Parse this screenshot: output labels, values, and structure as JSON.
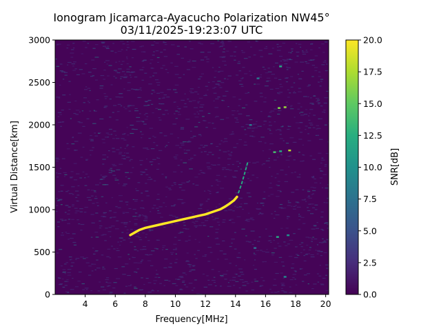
{
  "chart_data": {
    "type": "heatmap",
    "title_line1": "Ionogram Jicamarca-Ayacucho Polarization NW45°",
    "title_line2": "03/11/2025-19:23:07 UTC",
    "xlabel": "Frequency[MHz]",
    "ylabel": "Virtual Distance[km]",
    "xlim": [
      2,
      20.2
    ],
    "ylim": [
      0,
      3000
    ],
    "x_ticks": [
      4,
      6,
      8,
      10,
      12,
      14,
      16,
      18,
      20
    ],
    "y_ticks": [
      0,
      500,
      1000,
      1500,
      2000,
      2500,
      3000
    ],
    "colorbar": {
      "label": "SNR[dB]",
      "colormap": "viridis",
      "range": [
        0,
        20
      ],
      "ticks": [
        "0.0",
        "2.5",
        "5.0",
        "7.5",
        "10.0",
        "12.5",
        "15.0",
        "17.5",
        "20.0"
      ]
    },
    "background_snr_db": 0.5,
    "traces": [
      {
        "snr_db": 20,
        "points": [
          [
            7.0,
            700
          ],
          [
            7.3,
            730
          ],
          [
            7.6,
            760
          ],
          [
            8.0,
            785
          ],
          [
            8.5,
            805
          ],
          [
            9.0,
            825
          ],
          [
            9.5,
            845
          ],
          [
            10.0,
            865
          ],
          [
            10.5,
            885
          ],
          [
            11.0,
            905
          ],
          [
            11.5,
            925
          ],
          [
            12.0,
            945
          ],
          [
            12.5,
            975
          ],
          [
            13.0,
            1005
          ],
          [
            13.3,
            1035
          ],
          [
            13.6,
            1070
          ],
          [
            13.9,
            1110
          ],
          [
            14.1,
            1150
          ]
        ]
      },
      {
        "snr_db": 12,
        "points": [
          [
            14.2,
            1200
          ],
          [
            14.4,
            1300
          ],
          [
            14.6,
            1420
          ],
          [
            14.8,
            1550
          ]
        ]
      }
    ],
    "scatter_echoes": [
      {
        "x": 16.6,
        "y": 1680,
        "snr_db": 14
      },
      {
        "x": 17.0,
        "y": 1690,
        "snr_db": 12
      },
      {
        "x": 17.6,
        "y": 1700,
        "snr_db": 18
      },
      {
        "x": 16.9,
        "y": 2200,
        "snr_db": 16
      },
      {
        "x": 17.3,
        "y": 2210,
        "snr_db": 17
      },
      {
        "x": 17.0,
        "y": 2690,
        "snr_db": 12
      },
      {
        "x": 16.8,
        "y": 680,
        "snr_db": 12
      },
      {
        "x": 17.5,
        "y": 700,
        "snr_db": 10
      },
      {
        "x": 17.3,
        "y": 210,
        "snr_db": 9
      },
      {
        "x": 15.0,
        "y": 2000,
        "snr_db": 8
      },
      {
        "x": 15.5,
        "y": 2550,
        "snr_db": 8
      },
      {
        "x": 15.3,
        "y": 550,
        "snr_db": 7
      }
    ]
  }
}
